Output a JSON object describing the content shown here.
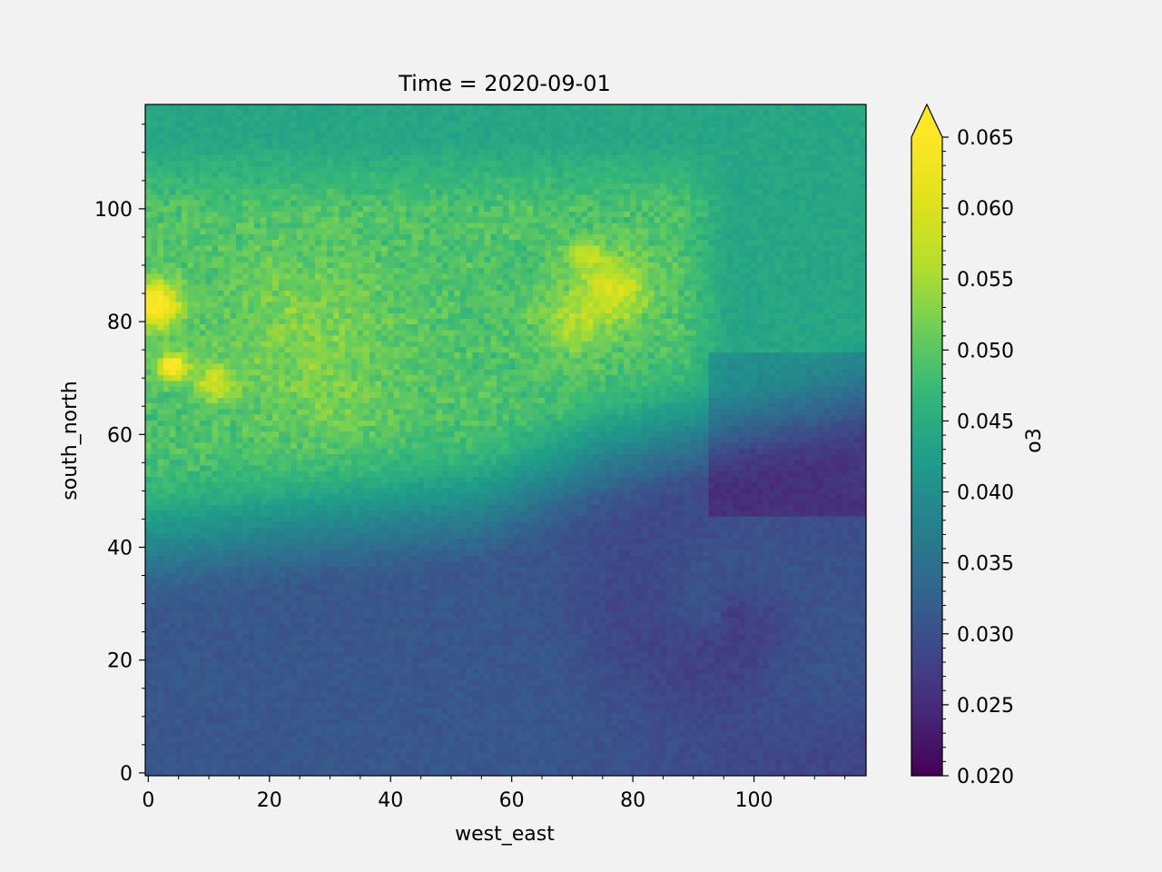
{
  "chart_data": {
    "type": "heatmap",
    "title": "Time = 2020-09-01",
    "xlabel": "west_east",
    "ylabel": "south_north",
    "xlim": [
      -0.5,
      118.5
    ],
    "ylim": [
      -0.5,
      118.5
    ],
    "x_ticks": [
      0,
      20,
      40,
      60,
      80,
      100
    ],
    "x_tick_labels": [
      "0",
      "20",
      "40",
      "60",
      "80",
      "100"
    ],
    "y_ticks": [
      0,
      20,
      40,
      60,
      80,
      100
    ],
    "y_tick_labels": [
      "0",
      "20",
      "40",
      "60",
      "80",
      "100"
    ],
    "grid": false,
    "colormap": "viridis",
    "colorbar": {
      "label": "o3",
      "vmin": 0.02,
      "vmax": 0.065,
      "extend": "max",
      "ticks": [
        0.02,
        0.025,
        0.03,
        0.035,
        0.04,
        0.045,
        0.05,
        0.055,
        0.06,
        0.065
      ],
      "tick_labels": [
        "0.020",
        "0.025",
        "0.030",
        "0.035",
        "0.040",
        "0.045",
        "0.050",
        "0.055",
        "0.060",
        "0.065"
      ]
    },
    "grid_size": [
      119,
      119
    ],
    "field_features": [
      {
        "feature": "background_ocean_north",
        "x": 60,
        "y": 108,
        "value": 0.044
      },
      {
        "feature": "land_plume_northwest",
        "x": 25,
        "y": 78,
        "value": 0.052
      },
      {
        "feature": "land_interior",
        "x": 40,
        "y": 55,
        "value": 0.048
      },
      {
        "feature": "hotspot_west_edge",
        "x": 1,
        "y": 83,
        "value": 0.066
      },
      {
        "feature": "hotspot_small",
        "x": 4,
        "y": 72,
        "value": 0.066
      },
      {
        "feature": "hotspot_secondary",
        "x": 11,
        "y": 69,
        "value": 0.058
      },
      {
        "feature": "plume_northeast",
        "x": 76,
        "y": 86,
        "value": 0.058
      },
      {
        "feature": "low_southern_region",
        "x": 25,
        "y": 15,
        "value": 0.03
      },
      {
        "feature": "vortex_center",
        "x": 95,
        "y": 25,
        "value": 0.027
      },
      {
        "feature": "low_southeast_corner",
        "x": 105,
        "y": 3,
        "value": 0.026
      }
    ]
  }
}
